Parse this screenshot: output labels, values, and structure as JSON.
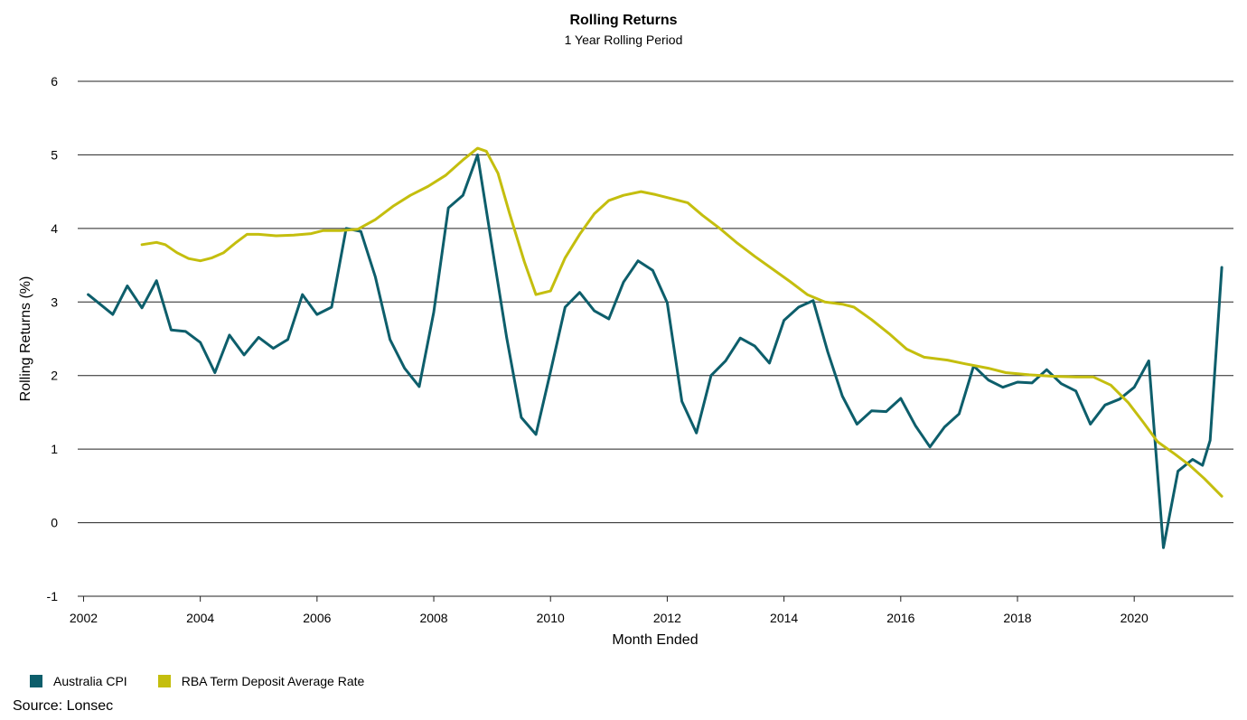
{
  "chart_data": {
    "type": "line",
    "title": "Rolling Returns",
    "subtitle": "1 Year Rolling Period",
    "xlabel": "Month Ended",
    "ylabel": "Rolling Returns (%)",
    "xlim": [
      2001.9,
      2021.7
    ],
    "ylim": [
      -1,
      6
    ],
    "x_ticks": [
      "2002",
      "2004",
      "2006",
      "2008",
      "2010",
      "2012",
      "2014",
      "2016",
      "2018",
      "2020"
    ],
    "y_ticks": [
      "-1",
      "0",
      "1",
      "2",
      "3",
      "4",
      "5",
      "6"
    ],
    "grid": "horizontal",
    "legend_position": "bottom-left",
    "series": [
      {
        "name": "Australia CPI",
        "color": "#0d5e6b",
        "points": [
          [
            2002.08,
            3.1
          ],
          [
            2002.5,
            2.83
          ],
          [
            2002.75,
            3.22
          ],
          [
            2003.0,
            2.92
          ],
          [
            2003.25,
            3.29
          ],
          [
            2003.5,
            2.62
          ],
          [
            2003.75,
            2.6
          ],
          [
            2004.0,
            2.45
          ],
          [
            2004.25,
            2.04
          ],
          [
            2004.5,
            2.55
          ],
          [
            2004.75,
            2.28
          ],
          [
            2005.0,
            2.52
          ],
          [
            2005.25,
            2.37
          ],
          [
            2005.5,
            2.49
          ],
          [
            2005.75,
            3.1
          ],
          [
            2006.0,
            2.83
          ],
          [
            2006.25,
            2.93
          ],
          [
            2006.5,
            4.0
          ],
          [
            2006.75,
            3.96
          ],
          [
            2007.0,
            3.34
          ],
          [
            2007.25,
            2.49
          ],
          [
            2007.5,
            2.1
          ],
          [
            2007.75,
            1.85
          ],
          [
            2008.0,
            2.86
          ],
          [
            2008.25,
            4.28
          ],
          [
            2008.5,
            4.45
          ],
          [
            2008.75,
            5.0
          ],
          [
            2009.0,
            3.75
          ],
          [
            2009.25,
            2.51
          ],
          [
            2009.5,
            1.43
          ],
          [
            2009.75,
            1.2
          ],
          [
            2010.0,
            2.05
          ],
          [
            2010.25,
            2.93
          ],
          [
            2010.5,
            3.13
          ],
          [
            2010.75,
            2.88
          ],
          [
            2011.0,
            2.77
          ],
          [
            2011.25,
            3.27
          ],
          [
            2011.5,
            3.56
          ],
          [
            2011.75,
            3.43
          ],
          [
            2012.0,
            2.99
          ],
          [
            2012.25,
            1.65
          ],
          [
            2012.5,
            1.22
          ],
          [
            2012.75,
            2.0
          ],
          [
            2013.0,
            2.2
          ],
          [
            2013.25,
            2.51
          ],
          [
            2013.5,
            2.4
          ],
          [
            2013.75,
            2.17
          ],
          [
            2014.0,
            2.75
          ],
          [
            2014.25,
            2.93
          ],
          [
            2014.5,
            3.02
          ],
          [
            2014.75,
            2.32
          ],
          [
            2015.0,
            1.72
          ],
          [
            2015.25,
            1.34
          ],
          [
            2015.5,
            1.52
          ],
          [
            2015.75,
            1.51
          ],
          [
            2016.0,
            1.69
          ],
          [
            2016.25,
            1.32
          ],
          [
            2016.5,
            1.03
          ],
          [
            2016.75,
            1.3
          ],
          [
            2017.0,
            1.48
          ],
          [
            2017.25,
            2.13
          ],
          [
            2017.5,
            1.94
          ],
          [
            2017.75,
            1.84
          ],
          [
            2018.0,
            1.91
          ],
          [
            2018.25,
            1.9
          ],
          [
            2018.5,
            2.08
          ],
          [
            2018.75,
            1.89
          ],
          [
            2019.0,
            1.79
          ],
          [
            2019.25,
            1.34
          ],
          [
            2019.5,
            1.6
          ],
          [
            2019.75,
            1.68
          ],
          [
            2020.0,
            1.84
          ],
          [
            2020.25,
            2.2
          ],
          [
            2020.5,
            -0.34
          ],
          [
            2020.75,
            0.7
          ],
          [
            2021.0,
            0.86
          ],
          [
            2021.17,
            0.78
          ],
          [
            2021.3,
            1.12
          ],
          [
            2021.5,
            3.47
          ]
        ]
      },
      {
        "name": "RBA Term Deposit Average Rate",
        "color": "#c4be0e",
        "points": [
          [
            2003.0,
            3.78
          ],
          [
            2003.25,
            3.81
          ],
          [
            2003.4,
            3.78
          ],
          [
            2003.6,
            3.67
          ],
          [
            2003.8,
            3.59
          ],
          [
            2004.0,
            3.56
          ],
          [
            2004.2,
            3.6
          ],
          [
            2004.4,
            3.67
          ],
          [
            2004.6,
            3.8
          ],
          [
            2004.8,
            3.92
          ],
          [
            2005.0,
            3.92
          ],
          [
            2005.3,
            3.9
          ],
          [
            2005.6,
            3.91
          ],
          [
            2005.9,
            3.93
          ],
          [
            2006.1,
            3.97
          ],
          [
            2006.4,
            3.97
          ],
          [
            2006.7,
            3.99
          ],
          [
            2007.0,
            4.12
          ],
          [
            2007.3,
            4.3
          ],
          [
            2007.6,
            4.45
          ],
          [
            2007.9,
            4.57
          ],
          [
            2008.2,
            4.72
          ],
          [
            2008.5,
            4.93
          ],
          [
            2008.75,
            5.09
          ],
          [
            2008.9,
            5.05
          ],
          [
            2009.1,
            4.75
          ],
          [
            2009.3,
            4.2
          ],
          [
            2009.55,
            3.55
          ],
          [
            2009.75,
            3.1
          ],
          [
            2010.0,
            3.15
          ],
          [
            2010.25,
            3.6
          ],
          [
            2010.5,
            3.92
          ],
          [
            2010.75,
            4.2
          ],
          [
            2011.0,
            4.38
          ],
          [
            2011.25,
            4.45
          ],
          [
            2011.55,
            4.5
          ],
          [
            2011.8,
            4.46
          ],
          [
            2012.1,
            4.4
          ],
          [
            2012.35,
            4.35
          ],
          [
            2012.6,
            4.18
          ],
          [
            2012.9,
            4.0
          ],
          [
            2013.2,
            3.8
          ],
          [
            2013.5,
            3.62
          ],
          [
            2013.8,
            3.45
          ],
          [
            2014.1,
            3.28
          ],
          [
            2014.4,
            3.1
          ],
          [
            2014.7,
            3.0
          ],
          [
            2015.0,
            2.97
          ],
          [
            2015.2,
            2.93
          ],
          [
            2015.5,
            2.76
          ],
          [
            2015.8,
            2.57
          ],
          [
            2016.1,
            2.36
          ],
          [
            2016.4,
            2.25
          ],
          [
            2016.8,
            2.21
          ],
          [
            2017.1,
            2.16
          ],
          [
            2017.5,
            2.1
          ],
          [
            2017.8,
            2.04
          ],
          [
            2018.2,
            2.01
          ],
          [
            2018.6,
            1.99
          ],
          [
            2019.0,
            1.98
          ],
          [
            2019.3,
            1.98
          ],
          [
            2019.6,
            1.87
          ],
          [
            2019.9,
            1.63
          ],
          [
            2020.15,
            1.37
          ],
          [
            2020.4,
            1.1
          ],
          [
            2020.7,
            0.93
          ],
          [
            2020.95,
            0.78
          ],
          [
            2021.2,
            0.6
          ],
          [
            2021.5,
            0.36
          ]
        ]
      }
    ]
  },
  "source": "Source: Lonsec"
}
